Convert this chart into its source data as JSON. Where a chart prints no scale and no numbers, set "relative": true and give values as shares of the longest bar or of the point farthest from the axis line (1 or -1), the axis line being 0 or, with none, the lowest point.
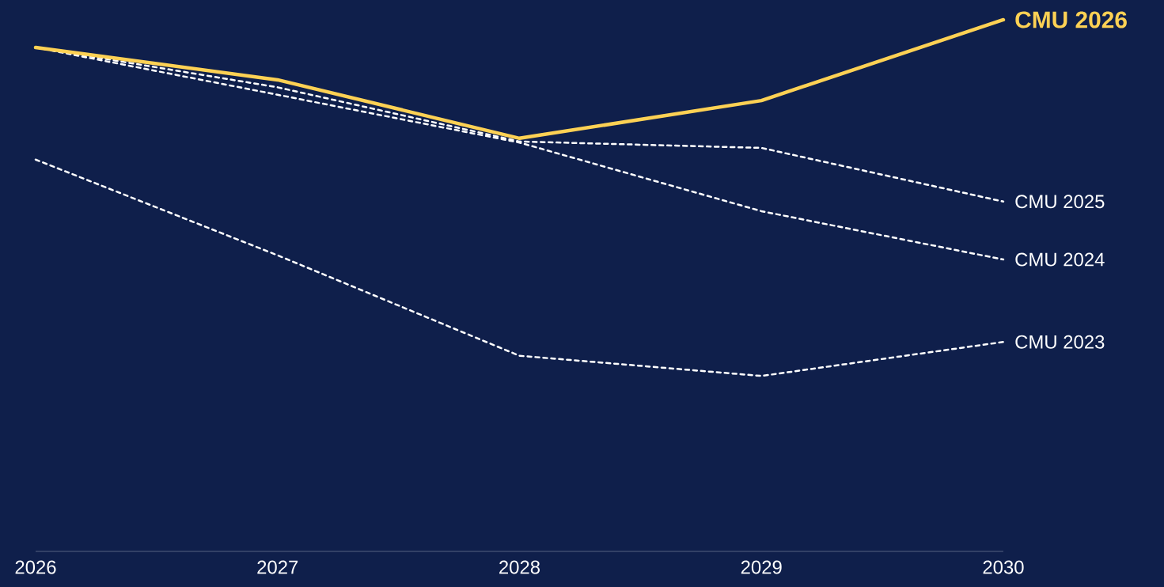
{
  "chart_data": {
    "type": "line",
    "relative": true,
    "x": [
      2026,
      2027,
      2028,
      2029,
      2030
    ],
    "xlim": [
      2026,
      2030
    ],
    "xticks": [
      2026,
      2027,
      2028,
      2029,
      2030
    ],
    "series": [
      {
        "name": "CMU 2023",
        "color": "#ffffff",
        "line_style": "dashed",
        "values": [
          0.737,
          0.557,
          0.368,
          0.33,
          0.394
        ]
      },
      {
        "name": "CMU 2024",
        "color": "#ffffff",
        "line_style": "dashed",
        "values": [
          0.948,
          0.859,
          0.769,
          0.64,
          0.549
        ]
      },
      {
        "name": "CMU 2025",
        "color": "#ffffff",
        "line_style": "dashed",
        "values": [
          0.948,
          0.873,
          0.771,
          0.759,
          0.658
        ]
      },
      {
        "name": "CMU 2026",
        "color": "#fdd154",
        "line_style": "solid",
        "values": [
          0.948,
          0.887,
          0.777,
          0.848,
          1.0
        ]
      }
    ]
  }
}
